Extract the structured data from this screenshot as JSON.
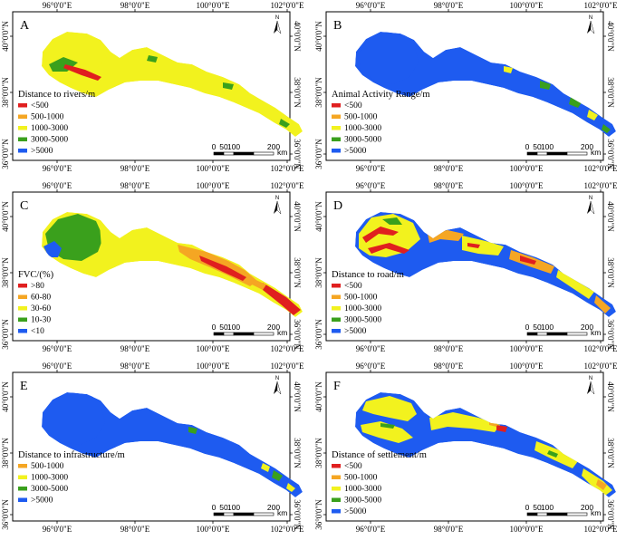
{
  "axis": {
    "top_ticks": [
      "96°0'0\"E",
      "98°0'0\"E",
      "100°0'0\"E",
      "102°0'0\"E"
    ],
    "bottom_ticks": [
      "96°0'0\"E",
      "98°0'0\"E",
      "100°0'0\"E",
      "102°0'0\"E"
    ],
    "left_ticks": [
      "40°0'0\"N",
      "38°0'0\"N",
      "36°0'0\"N"
    ],
    "right_ticks": [
      "40°0'0\"N",
      "38°0'0\"N",
      "36°0'0\"N"
    ]
  },
  "scalebar": {
    "labels": [
      "0",
      "50",
      "100",
      "200"
    ],
    "unit": "km"
  },
  "north_label": "N",
  "colors": {
    "red": "#e01f1f",
    "orange": "#f5a623",
    "yellow": "#f2f21e",
    "green": "#3aa01c",
    "blue": "#1e5bf0"
  },
  "panels": [
    {
      "letter": "A",
      "legend_title": "Distance to rivers/m",
      "legend": [
        {
          "label": "<500",
          "color": "#e01f1f"
        },
        {
          "label": "500-1000",
          "color": "#f5a623"
        },
        {
          "label": "1000-3000",
          "color": "#f2f21e"
        },
        {
          "label": "3000-5000",
          "color": "#3aa01c"
        },
        {
          "label": ">5000",
          "color": "#1e5bf0"
        }
      ]
    },
    {
      "letter": "B",
      "legend_title": "Animal Activity Range/m",
      "legend": [
        {
          "label": "<500",
          "color": "#e01f1f"
        },
        {
          "label": "500-1000",
          "color": "#f5a623"
        },
        {
          "label": "1000-3000",
          "color": "#f2f21e"
        },
        {
          "label": "3000-5000",
          "color": "#3aa01c"
        },
        {
          "label": ">5000",
          "color": "#1e5bf0"
        }
      ]
    },
    {
      "letter": "C",
      "legend_title": "FVC/(%)",
      "legend": [
        {
          "label": ">80",
          "color": "#e01f1f"
        },
        {
          "label": "60-80",
          "color": "#f5a623"
        },
        {
          "label": "30-60",
          "color": "#f2f21e"
        },
        {
          "label": "10-30",
          "color": "#3aa01c"
        },
        {
          "label": "<10",
          "color": "#1e5bf0"
        }
      ]
    },
    {
      "letter": "D",
      "legend_title": "Distance to road/m",
      "legend": [
        {
          "label": "<500",
          "color": "#e01f1f"
        },
        {
          "label": "500-1000",
          "color": "#f5a623"
        },
        {
          "label": "1000-3000",
          "color": "#f2f21e"
        },
        {
          "label": "3000-5000",
          "color": "#3aa01c"
        },
        {
          "label": ">5000",
          "color": "#1e5bf0"
        }
      ]
    },
    {
      "letter": "E",
      "legend_title": "Distance to infrastructure/m",
      "legend": [
        {
          "label": "500-1000",
          "color": "#f5a623"
        },
        {
          "label": "1000-3000",
          "color": "#f2f21e"
        },
        {
          "label": "3000-5000",
          "color": "#3aa01c"
        },
        {
          "label": ">5000",
          "color": "#1e5bf0"
        }
      ]
    },
    {
      "letter": "F",
      "legend_title": "Distance of settlement/m",
      "legend": [
        {
          "label": "<500",
          "color": "#e01f1f"
        },
        {
          "label": "500-1000",
          "color": "#f5a623"
        },
        {
          "label": "1000-3000",
          "color": "#f2f21e"
        },
        {
          "label": "3000-5000",
          "color": "#3aa01c"
        },
        {
          "label": ">5000",
          "color": "#1e5bf0"
        }
      ]
    }
  ]
}
